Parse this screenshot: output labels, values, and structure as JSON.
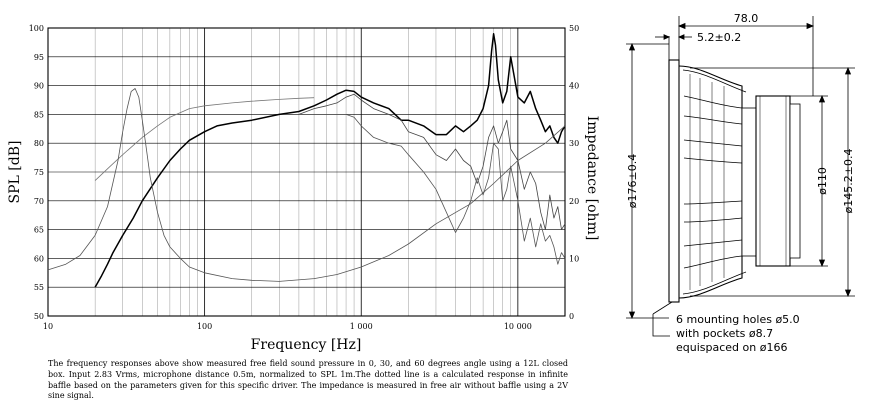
{
  "chart_data": [
    {
      "type": "line",
      "x_scale": "log",
      "xlim": [
        10,
        20000
      ],
      "xticks": [
        10,
        100,
        1000,
        10000
      ],
      "xtick_labels": [
        "10",
        "100",
        "1 000",
        "10 000"
      ],
      "xlabel": "Frequency [Hz]",
      "ylabel_left": "SPL [dB]",
      "ylim_left": [
        50,
        100
      ],
      "yticks_left": [
        50,
        55,
        60,
        65,
        70,
        75,
        80,
        85,
        90,
        95,
        100
      ],
      "ylabel_right": "Impedance [ohm]",
      "ylim_right": [
        0,
        50
      ],
      "yticks_right": [
        0,
        10,
        20,
        30,
        40,
        50
      ],
      "grid": true,
      "series": [
        {
          "role": "spl_0deg",
          "axis": "left",
          "color": "#000000",
          "x": [
            20,
            22,
            24,
            26,
            30,
            35,
            40,
            50,
            60,
            70,
            80,
            100,
            120,
            150,
            200,
            300,
            400,
            500,
            600,
            700,
            800,
            900,
            1000,
            1200,
            1500,
            1800,
            2000,
            2500,
            3000,
            3500,
            4000,
            4500,
            5000,
            5500,
            6000,
            6500,
            6800,
            7000,
            7200,
            7500,
            8000,
            8500,
            9000,
            10000,
            11000,
            12000,
            13000,
            14000,
            15000,
            16000,
            17000,
            18000,
            19000,
            20000
          ],
          "y": [
            55,
            57,
            59,
            61,
            64,
            67,
            70,
            74,
            77,
            79,
            80.5,
            82,
            83,
            83.5,
            84,
            85,
            85.5,
            86.5,
            87.5,
            88.5,
            89.2,
            89,
            88,
            87,
            86,
            84,
            84,
            83,
            81.5,
            81.5,
            83,
            82,
            83,
            84,
            86,
            90,
            96,
            99,
            97,
            91,
            87,
            89,
            95,
            88,
            87,
            89,
            86,
            84,
            82,
            83,
            81,
            80,
            82,
            83
          ]
        },
        {
          "role": "spl_30deg",
          "axis": "left",
          "color": "#444444",
          "x": [
            400,
            500,
            600,
            700,
            800,
            900,
            1000,
            1200,
            1500,
            1800,
            2000,
            2500,
            3000,
            3500,
            4000,
            4500,
            5000,
            5500,
            6000,
            6500,
            7000,
            7500,
            8000,
            8500,
            9000,
            10000,
            11000,
            12000,
            13000,
            14000,
            15000,
            16000,
            17000,
            18000,
            19000,
            20000
          ],
          "y": [
            85,
            86,
            86.5,
            87,
            88,
            88.5,
            87.5,
            86,
            85,
            84,
            82,
            81,
            78,
            77,
            79,
            77,
            76,
            73,
            76,
            81,
            83,
            80,
            82,
            84,
            79,
            77,
            72,
            75,
            73,
            68,
            65,
            71,
            67,
            69,
            65,
            66
          ]
        },
        {
          "role": "spl_60deg",
          "axis": "left",
          "color": "#555555",
          "x": [
            400,
            500,
            600,
            700,
            800,
            900,
            1000,
            1200,
            1500,
            1800,
            2000,
            2500,
            3000,
            3500,
            4000,
            4500,
            5000,
            5500,
            6000,
            6500,
            7000,
            7500,
            8000,
            8500,
            9000,
            10000,
            11000,
            12000,
            13000,
            14000,
            15000,
            16000,
            17000,
            18000,
            19000,
            20000
          ],
          "y": [
            85,
            85,
            85,
            85,
            85,
            84.5,
            83,
            81,
            80,
            79.5,
            78,
            75,
            72,
            68,
            64.5,
            67,
            70,
            74,
            71,
            74,
            80,
            79,
            70,
            72,
            76,
            70,
            63,
            67,
            62,
            66,
            63,
            64,
            62,
            59,
            61,
            60
          ]
        },
        {
          "role": "spl_infinite_baffle",
          "axis": "left",
          "color": "#777777",
          "x": [
            20,
            25,
            30,
            40,
            50,
            60,
            80,
            100,
            150,
            200,
            300,
            400,
            500
          ],
          "y": [
            73.5,
            76,
            78,
            81,
            83,
            84.5,
            86,
            86.5,
            87,
            87.3,
            87.6,
            87.8,
            87.9
          ]
        },
        {
          "role": "impedance",
          "axis": "right",
          "color": "#555555",
          "x": [
            10,
            13,
            16,
            20,
            24,
            28,
            30,
            32,
            34,
            36,
            38,
            40,
            42,
            45,
            50,
            55,
            60,
            70,
            80,
            100,
            150,
            200,
            300,
            500,
            700,
            1000,
            1500,
            2000,
            3000,
            5000,
            7000,
            10000,
            15000,
            20000
          ],
          "y": [
            8,
            9,
            10.5,
            14,
            19,
            27,
            32,
            36,
            39,
            39.5,
            38,
            34,
            30,
            24,
            18,
            14,
            12,
            10,
            8.5,
            7.5,
            6.5,
            6.2,
            6,
            6.5,
            7.2,
            8.5,
            10.5,
            12.5,
            16,
            19.5,
            23,
            27,
            30,
            33
          ]
        }
      ]
    }
  ],
  "drawing": {
    "dimensions": {
      "depth": "78.0",
      "flange": "5.2±0.2",
      "outer_diameter": "ø176±0.4",
      "magnet_diameter": "ø110",
      "cutout_diameter": "ø145.2±0.4"
    },
    "mounting_note": [
      "6 mounting holes ø5.0",
      "with pockets ø8.7",
      "equispaced on ø166"
    ]
  },
  "caption": "The frequency responses above show measured free field sound pressure in 0, 30, and 60 degrees angle using a 12L closed box. Input 2.83 Vrms, microphone distance 0.5m, normalized to SPL 1m.The dotted line is a calculated response in infinite baffle based on the parameters given for this specific driver. The impedance is measured in free air without baffle using a 2V sine signal."
}
